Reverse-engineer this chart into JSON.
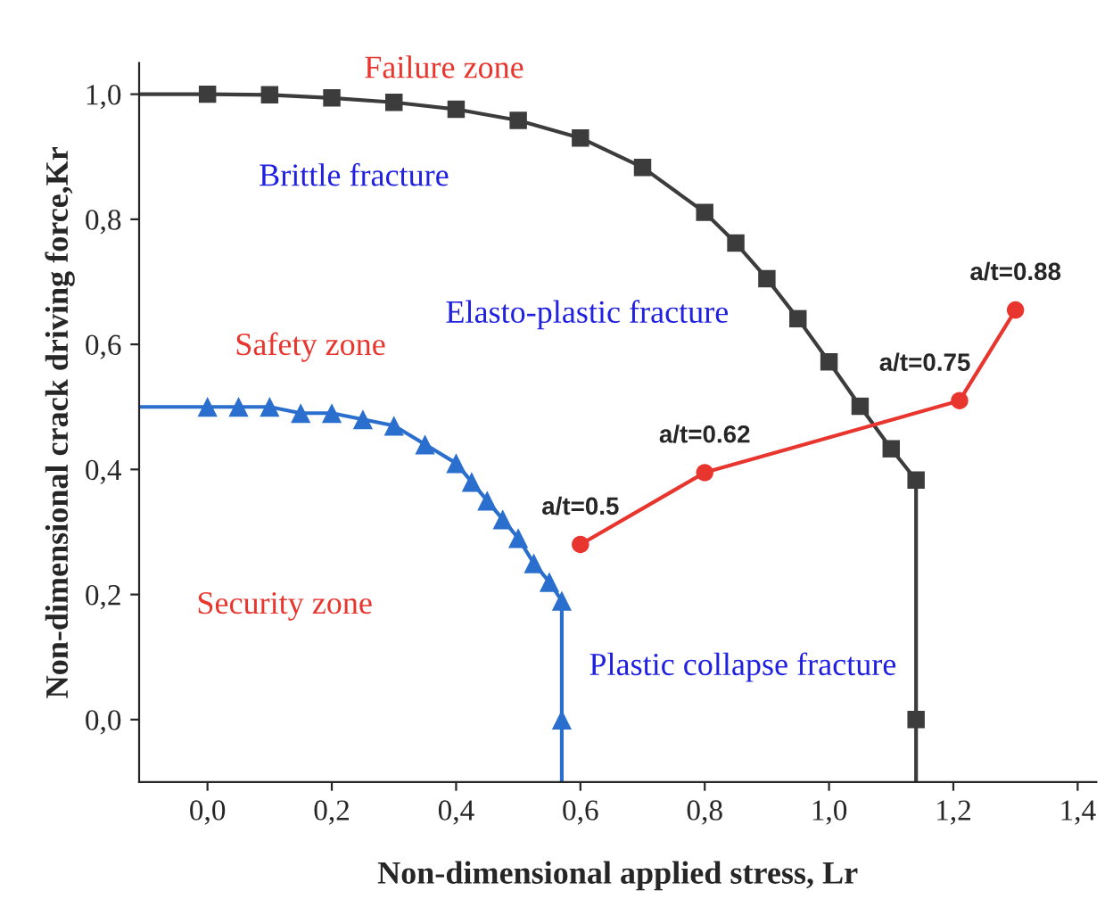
{
  "chart_data": {
    "type": "line",
    "xlabel": "Non-dimensional applied stress, Lr",
    "ylabel": "Non-dimensional crack driving force,Kr",
    "xlim": [
      -0.11,
      1.43
    ],
    "ylim": [
      -0.1,
      1.05
    ],
    "xticks": [
      {
        "value": 0,
        "label": "0,0"
      },
      {
        "value": 0.2,
        "label": "0,2"
      },
      {
        "value": 0.4,
        "label": "0,4"
      },
      {
        "value": 0.6,
        "label": "0,6"
      },
      {
        "value": 0.8,
        "label": "0,8"
      },
      {
        "value": 1.0,
        "label": "1,0"
      },
      {
        "value": 1.2,
        "label": "1,2"
      },
      {
        "value": 1.4,
        "label": "1,4"
      }
    ],
    "yticks": [
      {
        "value": 0,
        "label": "0,0"
      },
      {
        "value": 0.2,
        "label": "0,2"
      },
      {
        "value": 0.4,
        "label": "0,4"
      },
      {
        "value": 0.6,
        "label": "0,6"
      },
      {
        "value": 0.8,
        "label": "0,8"
      },
      {
        "value": 1.0,
        "label": "1,0"
      }
    ],
    "grid": false,
    "legend": false,
    "series": [
      {
        "color": "#3c3c3c",
        "marker": "square",
        "x": [
          0,
          0.1,
          0.2,
          0.3,
          0.4,
          0.5,
          0.6,
          0.7,
          0.8,
          0.85,
          0.9,
          0.95,
          1.0,
          1.05,
          1.1,
          1.14
        ],
        "values": [
          1.0,
          0.999,
          0.994,
          0.987,
          0.976,
          0.958,
          0.93,
          0.883,
          0.811,
          0.762,
          0.705,
          0.641,
          0.572,
          0.501,
          0.433,
          0.383
        ]
      },
      {
        "type": "line",
        "color": "#3c3c3c",
        "marker": "none",
        "x": [
          -0.11,
          0
        ],
        "values": [
          1.0,
          1.0
        ]
      },
      {
        "type": "line",
        "color": "#3c3c3c",
        "marker": "none",
        "x": [
          1.14,
          1.14
        ],
        "values": [
          0.383,
          -0.1
        ]
      },
      {
        "type": "scatter",
        "color": "#3c3c3c",
        "marker": "square",
        "x": [
          1.14
        ],
        "values": [
          0
        ]
      },
      {
        "color": "#2b6fce",
        "marker": "triangle",
        "x": [
          0,
          0.05,
          0.1,
          0.15,
          0.2,
          0.25,
          0.3,
          0.35,
          0.4,
          0.425,
          0.45,
          0.475,
          0.5,
          0.525,
          0.55,
          0.57
        ],
        "values": [
          0.5,
          0.5,
          0.5,
          0.49,
          0.49,
          0.48,
          0.47,
          0.44,
          0.41,
          0.38,
          0.35,
          0.32,
          0.29,
          0.25,
          0.22,
          0.19
        ]
      },
      {
        "type": "line",
        "color": "#2b6fce",
        "marker": "none",
        "x": [
          -0.11,
          0
        ],
        "values": [
          0.5,
          0.5
        ]
      },
      {
        "type": "line",
        "color": "#2b6fce",
        "marker": "none",
        "x": [
          0.57,
          0.57
        ],
        "values": [
          0.19,
          -0.1
        ]
      },
      {
        "type": "scatter",
        "color": "#2b6fce",
        "marker": "triangle",
        "x": [
          0.57
        ],
        "values": [
          0
        ]
      },
      {
        "color": "#e8352e",
        "marker": "circle",
        "x": [
          0.6,
          0.8,
          1.21,
          1.3
        ],
        "values": [
          0.28,
          0.395,
          0.51,
          0.655
        ]
      }
    ],
    "annotations": [
      "Failure zone",
      "Brittle fracture",
      "Elasto-plastic fracture",
      "Safety zone",
      "Security zone",
      "Plastic collapse fracture",
      {
        "text": "a/t=0.5",
        "x": 0.6,
        "y": 0.28
      },
      {
        "text": "a/t=0.62",
        "x": 0.8,
        "y": 0.395
      },
      {
        "text": "a/t=0.75",
        "x": 1.21,
        "y": 0.51
      },
      {
        "text": "a/t=0.88",
        "x": 1.3,
        "y": 0.655
      }
    ]
  }
}
